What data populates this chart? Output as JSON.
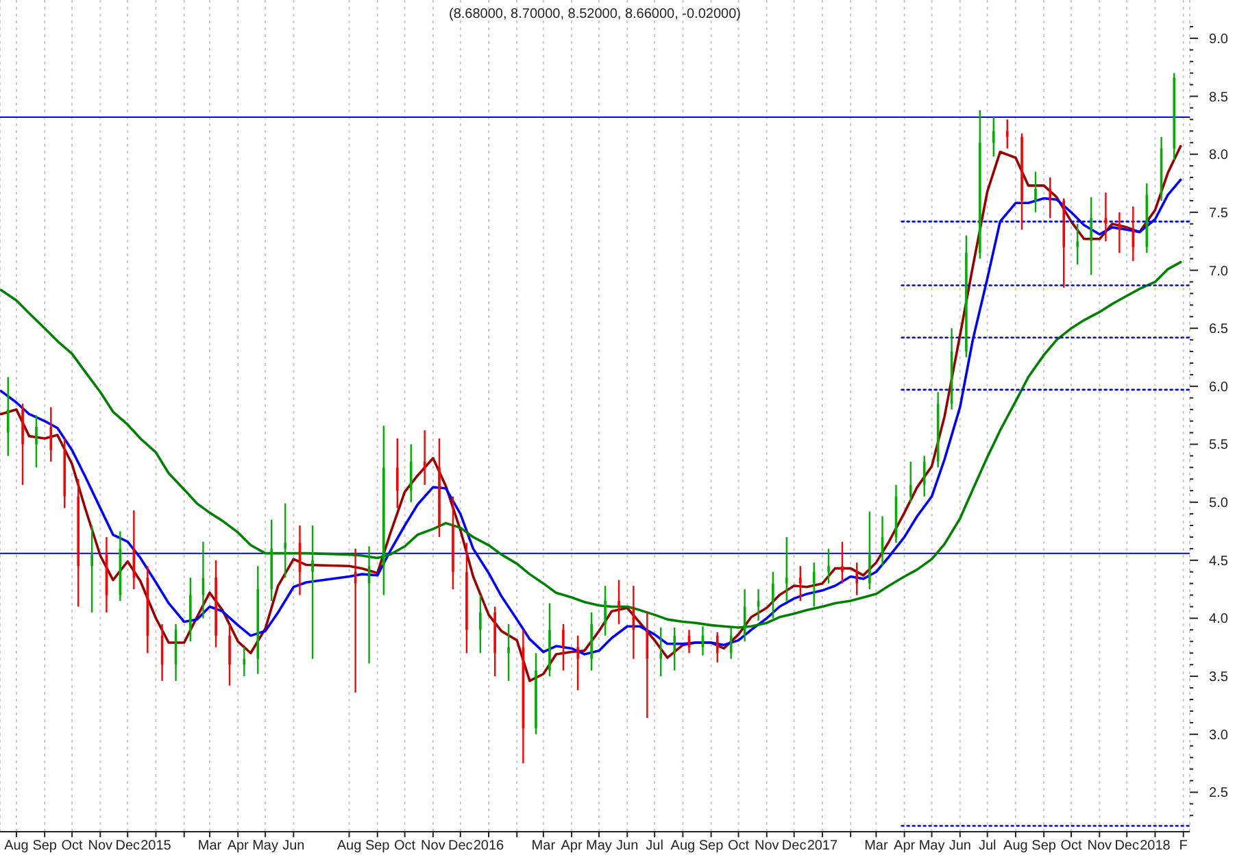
{
  "chart_data": {
    "type": "candlestick",
    "title": "(8.68000, 8.70000, 8.52000, 8.66000, -0.02000)",
    "x": [
      "2014-07-23",
      "2014-08-08",
      "2014-08-23",
      "2014-09-08",
      "2014-09-23",
      "2014-10-08",
      "2014-10-23",
      "2014-11-08",
      "2014-11-23",
      "2014-12-08",
      "2014-12-23",
      "2015-01-08",
      "2015-01-23",
      "2015-02-08",
      "2015-02-22",
      "2015-03-08",
      "2015-03-23",
      "2015-04-08",
      "2015-04-23",
      "2015-05-08",
      "2015-05-23",
      "2015-06-08",
      "2015-06-22",
      "2015-08-08",
      "2015-08-23",
      "2015-09-08",
      "2015-09-23",
      "2015-10-08",
      "2015-10-23",
      "2015-11-08",
      "2015-11-23",
      "2015-12-08",
      "2015-12-23",
      "2016-01-08",
      "2016-01-23",
      "2016-02-08",
      "2016-02-22",
      "2016-03-08",
      "2016-03-23",
      "2016-04-08",
      "2016-04-23",
      "2016-05-08",
      "2016-05-23",
      "2016-06-08",
      "2016-06-23",
      "2016-07-08",
      "2016-07-23",
      "2016-08-08",
      "2016-08-23",
      "2016-09-08",
      "2016-09-23",
      "2016-10-08",
      "2016-10-23",
      "2016-11-08",
      "2016-11-23",
      "2016-12-08",
      "2016-12-23",
      "2017-01-08",
      "2017-01-23",
      "2017-02-08",
      "2017-02-22",
      "2017-03-08",
      "2017-03-23",
      "2017-04-08",
      "2017-04-23",
      "2017-05-08",
      "2017-05-23",
      "2017-06-08",
      "2017-06-23",
      "2017-07-08",
      "2017-07-23",
      "2017-08-08",
      "2017-08-23",
      "2017-09-08",
      "2017-09-23",
      "2017-10-08",
      "2017-10-23",
      "2017-11-08",
      "2017-11-23",
      "2017-12-08",
      "2017-12-23",
      "2018-01-08",
      "2018-01-22"
    ],
    "ohlc": [
      [
        5.6,
        6.08,
        5.4,
        5.8
      ],
      [
        5.8,
        5.85,
        5.15,
        5.5
      ],
      [
        5.5,
        5.75,
        5.3,
        5.65
      ],
      [
        5.65,
        5.82,
        5.35,
        5.45
      ],
      [
        5.45,
        5.55,
        4.95,
        5.05
      ],
      [
        5.05,
        5.2,
        4.1,
        4.45
      ],
      [
        4.45,
        4.8,
        4.05,
        4.55
      ],
      [
        4.55,
        4.7,
        4.05,
        4.2
      ],
      [
        4.2,
        4.75,
        4.15,
        4.6
      ],
      [
        4.6,
        4.93,
        4.25,
        4.35
      ],
      [
        4.35,
        4.45,
        3.7,
        3.85
      ],
      [
        3.85,
        3.95,
        3.46,
        3.6
      ],
      [
        3.6,
        3.95,
        3.46,
        3.9
      ],
      [
        3.9,
        4.35,
        3.8,
        4.2
      ],
      [
        4.2,
        4.66,
        4.0,
        4.35
      ],
      [
        4.35,
        4.5,
        3.75,
        3.85
      ],
      [
        3.85,
        3.95,
        3.42,
        3.6
      ],
      [
        3.6,
        3.75,
        3.5,
        3.65
      ],
      [
        3.65,
        4.45,
        3.52,
        4.25
      ],
      [
        4.25,
        4.85,
        4.15,
        4.6
      ],
      [
        4.6,
        4.99,
        4.35,
        4.65
      ],
      [
        4.65,
        4.8,
        4.2,
        4.4
      ],
      [
        4.4,
        4.8,
        3.65,
        4.5
      ],
      [
        4.4,
        4.6,
        3.36,
        4.3
      ],
      [
        4.3,
        4.62,
        3.61,
        4.45
      ],
      [
        4.45,
        5.66,
        4.2,
        5.3
      ],
      [
        5.3,
        5.55,
        4.95,
        5.1
      ],
      [
        5.1,
        5.5,
        5.0,
        5.35
      ],
      [
        5.35,
        5.62,
        5.15,
        5.3
      ],
      [
        5.3,
        5.55,
        4.7,
        4.8
      ],
      [
        4.8,
        5.05,
        4.25,
        4.4
      ],
      [
        4.4,
        4.65,
        3.7,
        3.9
      ],
      [
        3.9,
        4.2,
        3.7,
        4.05
      ],
      [
        4.05,
        4.1,
        3.5,
        3.7
      ],
      [
        3.7,
        3.95,
        3.46,
        3.75
      ],
      [
        3.75,
        3.9,
        2.75,
        3.05
      ],
      [
        3.05,
        3.7,
        3.0,
        3.55
      ],
      [
        3.55,
        4.13,
        3.5,
        3.9
      ],
      [
        3.9,
        3.95,
        3.55,
        3.75
      ],
      [
        3.75,
        3.85,
        3.38,
        3.65
      ],
      [
        3.65,
        4.05,
        3.55,
        3.95
      ],
      [
        3.95,
        4.28,
        3.85,
        4.15
      ],
      [
        4.15,
        4.33,
        3.95,
        4.1
      ],
      [
        4.1,
        4.28,
        3.65,
        3.9
      ],
      [
        3.9,
        4.05,
        3.14,
        3.65
      ],
      [
        3.65,
        3.92,
        3.5,
        3.7
      ],
      [
        3.7,
        3.92,
        3.55,
        3.85
      ],
      [
        3.85,
        3.9,
        3.7,
        3.75
      ],
      [
        3.75,
        3.93,
        3.68,
        3.85
      ],
      [
        3.85,
        3.88,
        3.62,
        3.7
      ],
      [
        3.7,
        3.92,
        3.65,
        3.85
      ],
      [
        3.85,
        4.25,
        3.8,
        4.1
      ],
      [
        4.1,
        4.25,
        3.98,
        4.15
      ],
      [
        4.15,
        4.4,
        4.0,
        4.3
      ],
      [
        4.3,
        4.7,
        4.15,
        4.35
      ],
      [
        4.35,
        4.45,
        4.15,
        4.3
      ],
      [
        4.3,
        4.48,
        4.1,
        4.4
      ],
      [
        4.4,
        4.6,
        4.3,
        4.45
      ],
      [
        4.45,
        4.66,
        4.3,
        4.4
      ],
      [
        4.4,
        4.48,
        4.2,
        4.3
      ],
      [
        4.3,
        4.92,
        4.25,
        4.55
      ],
      [
        4.55,
        4.88,
        4.45,
        4.7
      ],
      [
        4.7,
        5.15,
        4.65,
        5.05
      ],
      [
        5.05,
        5.35,
        5.0,
        5.15
      ],
      [
        5.15,
        5.4,
        5.05,
        5.35
      ],
      [
        5.35,
        5.95,
        5.3,
        5.85
      ],
      [
        5.85,
        6.5,
        5.8,
        6.3
      ],
      [
        6.3,
        7.3,
        6.25,
        7.15
      ],
      [
        7.15,
        8.38,
        7.1,
        8.1
      ],
      [
        8.1,
        8.32,
        7.98,
        8.2
      ],
      [
        8.2,
        8.3,
        8.05,
        8.15
      ],
      [
        8.15,
        8.18,
        7.35,
        7.6
      ],
      [
        7.6,
        7.85,
        7.5,
        7.7
      ],
      [
        7.7,
        7.8,
        7.45,
        7.6
      ],
      [
        7.6,
        7.62,
        6.85,
        7.2
      ],
      [
        7.2,
        7.4,
        7.05,
        7.25
      ],
      [
        7.25,
        7.63,
        6.96,
        7.45
      ],
      [
        7.45,
        7.67,
        7.25,
        7.4
      ],
      [
        7.4,
        7.5,
        7.15,
        7.35
      ],
      [
        7.35,
        7.55,
        7.08,
        7.2
      ],
      [
        7.2,
        7.75,
        7.15,
        7.65
      ],
      [
        7.65,
        8.15,
        7.6,
        8.05
      ],
      [
        8.05,
        8.7,
        7.95,
        8.66
      ]
    ],
    "colors": [
      "#00b000",
      "#ff0000",
      "#00b000",
      "#ff0000",
      "#ff0000",
      "#ff0000",
      "#00b000",
      "#ff0000",
      "#00b000",
      "#ff0000",
      "#ff0000",
      "#ff0000",
      "#00b000",
      "#00b000",
      "#00b000",
      "#ff0000",
      "#ff0000",
      "#00b000",
      "#00b000",
      "#00b000",
      "#00b000",
      "#ff0000",
      "#00b000",
      "#ff0000",
      "#00b000",
      "#00b000",
      "#ff0000",
      "#00b000",
      "#ff0000",
      "#ff0000",
      "#ff0000",
      "#ff0000",
      "#00b000",
      "#ff0000",
      "#00b000",
      "#ff0000",
      "#00b000",
      "#00b000",
      "#ff0000",
      "#ff0000",
      "#00b000",
      "#00b000",
      "#ff0000",
      "#ff0000",
      "#ff0000",
      "#00b000",
      "#00b000",
      "#ff0000",
      "#00b000",
      "#ff0000",
      "#00b000",
      "#00b000",
      "#00b000",
      "#00b000",
      "#00b000",
      "#ff0000",
      "#00b000",
      "#00b000",
      "#ff0000",
      "#ff0000",
      "#00b000",
      "#00b000",
      "#00b000",
      "#00b000",
      "#00b000",
      "#00b000",
      "#00b000",
      "#00b000",
      "#00b000",
      "#00b000",
      "#ff0000",
      "#ff0000",
      "#00b000",
      "#ff0000",
      "#ff0000",
      "#00b000",
      "#00b000",
      "#ff0000",
      "#ff0000",
      "#ff0000",
      "#00b000",
      "#00b000",
      "#00b000"
    ],
    "series": [
      {
        "type": "line",
        "color": "#990000",
        "x": [
          "2014-07-15",
          "2014-08-01",
          "2014-08-15",
          "2014-09-01",
          "2014-09-15",
          "2014-10-01",
          "2014-10-15",
          "2014-11-01",
          "2014-11-15",
          "2014-12-01",
          "2014-12-15",
          "2015-01-01",
          "2015-01-15",
          "2015-02-01",
          "2015-02-15",
          "2015-03-01",
          "2015-03-15",
          "2015-04-01",
          "2015-04-15",
          "2015-05-01",
          "2015-05-15",
          "2015-06-01",
          "2015-06-15",
          "2015-08-01",
          "2015-08-15",
          "2015-09-01",
          "2015-09-15",
          "2015-10-01",
          "2015-10-15",
          "2015-11-01",
          "2015-11-15",
          "2015-12-01",
          "2015-12-15",
          "2016-01-01",
          "2016-01-15",
          "2016-02-01",
          "2016-02-15",
          "2016-03-01",
          "2016-03-15",
          "2016-04-01",
          "2016-04-15",
          "2016-05-01",
          "2016-05-15",
          "2016-06-01",
          "2016-06-15",
          "2016-07-01",
          "2016-07-15",
          "2016-08-01",
          "2016-08-15",
          "2016-09-01",
          "2016-09-15",
          "2016-10-01",
          "2016-10-15",
          "2016-11-01",
          "2016-11-15",
          "2016-12-01",
          "2016-12-15",
          "2017-01-01",
          "2017-01-15",
          "2017-02-01",
          "2017-02-15",
          "2017-03-01",
          "2017-03-15",
          "2017-04-01",
          "2017-04-15",
          "2017-05-01",
          "2017-05-15",
          "2017-06-01",
          "2017-06-15",
          "2017-07-01",
          "2017-07-15",
          "2017-08-01",
          "2017-08-15",
          "2017-09-01",
          "2017-09-15",
          "2017-10-01",
          "2017-10-15",
          "2017-11-01",
          "2017-11-15",
          "2017-12-01",
          "2017-12-15",
          "2018-01-01",
          "2018-01-15",
          "2018-01-29"
        ],
        "values": [
          5.76,
          5.8,
          5.57,
          5.55,
          5.58,
          5.33,
          4.96,
          4.54,
          4.33,
          4.49,
          4.32,
          4.0,
          3.79,
          3.79,
          4.01,
          4.22,
          4.07,
          3.8,
          3.7,
          3.91,
          4.28,
          4.51,
          4.46,
          4.45,
          4.43,
          4.39,
          4.73,
          5.09,
          5.23,
          5.38,
          5.14,
          4.76,
          4.36,
          4.03,
          3.89,
          3.81,
          3.46,
          3.52,
          3.69,
          3.71,
          3.72,
          3.89,
          4.06,
          4.09,
          3.96,
          3.81,
          3.66,
          3.77,
          3.79,
          3.79,
          3.74,
          3.86,
          4.01,
          4.09,
          4.2,
          4.28,
          4.27,
          4.3,
          4.43,
          4.43,
          4.37,
          4.48,
          4.66,
          4.91,
          5.13,
          5.31,
          5.74,
          6.44,
          7.03,
          7.68,
          8.02,
          7.97,
          7.73,
          7.73,
          7.63,
          7.42,
          7.27,
          7.27,
          7.4,
          7.37,
          7.33,
          7.52,
          7.84,
          8.07
        ]
      },
      {
        "type": "line",
        "color": "#0000ff",
        "x": [
          "2014-07-15",
          "2014-08-01",
          "2014-08-15",
          "2014-09-01",
          "2014-09-15",
          "2014-10-01",
          "2014-10-15",
          "2014-11-01",
          "2014-11-15",
          "2014-12-01",
          "2014-12-15",
          "2015-01-01",
          "2015-01-15",
          "2015-02-01",
          "2015-02-15",
          "2015-03-01",
          "2015-03-15",
          "2015-04-01",
          "2015-04-15",
          "2015-05-01",
          "2015-05-15",
          "2015-06-01",
          "2015-06-15",
          "2015-08-01",
          "2015-08-15",
          "2015-09-01",
          "2015-09-15",
          "2015-10-01",
          "2015-10-15",
          "2015-11-01",
          "2015-11-15",
          "2015-12-01",
          "2015-12-15",
          "2016-01-01",
          "2016-01-15",
          "2016-02-01",
          "2016-02-15",
          "2016-03-01",
          "2016-03-15",
          "2016-04-01",
          "2016-04-15",
          "2016-05-01",
          "2016-05-15",
          "2016-06-01",
          "2016-06-15",
          "2016-07-01",
          "2016-07-15",
          "2016-08-01",
          "2016-08-15",
          "2016-09-01",
          "2016-09-15",
          "2016-10-01",
          "2016-10-15",
          "2016-11-01",
          "2016-11-15",
          "2016-12-01",
          "2016-12-15",
          "2017-01-01",
          "2017-01-15",
          "2017-02-01",
          "2017-02-15",
          "2017-03-01",
          "2017-03-15",
          "2017-04-01",
          "2017-04-15",
          "2017-05-01",
          "2017-05-15",
          "2017-06-01",
          "2017-06-15",
          "2017-07-01",
          "2017-07-15",
          "2017-08-01",
          "2017-08-15",
          "2017-09-01",
          "2017-09-15",
          "2017-10-01",
          "2017-10-15",
          "2017-11-01",
          "2017-11-15",
          "2017-12-01",
          "2017-12-15",
          "2018-01-01",
          "2018-01-15",
          "2018-01-29"
        ],
        "values": [
          5.96,
          5.86,
          5.76,
          5.7,
          5.64,
          5.45,
          5.23,
          4.95,
          4.72,
          4.66,
          4.52,
          4.31,
          4.13,
          3.97,
          3.99,
          4.1,
          4.06,
          3.94,
          3.85,
          3.89,
          4.05,
          4.27,
          4.31,
          4.36,
          4.38,
          4.37,
          4.58,
          4.8,
          4.98,
          5.13,
          5.12,
          4.9,
          4.6,
          4.39,
          4.19,
          3.99,
          3.82,
          3.71,
          3.76,
          3.74,
          3.69,
          3.72,
          3.83,
          3.93,
          3.93,
          3.86,
          3.78,
          3.78,
          3.79,
          3.79,
          3.77,
          3.81,
          3.9,
          4.0,
          4.1,
          4.17,
          4.21,
          4.24,
          4.28,
          4.36,
          4.34,
          4.4,
          4.53,
          4.7,
          4.88,
          5.05,
          5.37,
          5.82,
          6.4,
          6.93,
          7.42,
          7.58,
          7.58,
          7.62,
          7.61,
          7.5,
          7.39,
          7.31,
          7.37,
          7.35,
          7.33,
          7.44,
          7.65,
          7.78
        ]
      },
      {
        "type": "line",
        "color": "#008000",
        "x": [
          "2014-07-15",
          "2014-08-01",
          "2014-08-15",
          "2014-09-01",
          "2014-09-15",
          "2014-10-01",
          "2014-10-15",
          "2014-11-01",
          "2014-11-15",
          "2014-12-01",
          "2014-12-15",
          "2015-01-01",
          "2015-01-15",
          "2015-02-01",
          "2015-02-15",
          "2015-03-01",
          "2015-03-15",
          "2015-04-01",
          "2015-04-15",
          "2015-05-01",
          "2015-05-15",
          "2015-06-01",
          "2015-06-15",
          "2015-08-01",
          "2015-08-15",
          "2015-09-01",
          "2015-09-15",
          "2015-10-01",
          "2015-10-15",
          "2015-11-01",
          "2015-11-15",
          "2015-12-01",
          "2015-12-15",
          "2016-01-01",
          "2016-01-15",
          "2016-02-01",
          "2016-02-15",
          "2016-03-01",
          "2016-03-15",
          "2016-04-01",
          "2016-04-15",
          "2016-05-01",
          "2016-05-15",
          "2016-06-01",
          "2016-06-15",
          "2016-07-01",
          "2016-07-15",
          "2016-08-01",
          "2016-08-15",
          "2016-09-01",
          "2016-09-15",
          "2016-10-01",
          "2016-10-15",
          "2016-11-01",
          "2016-11-15",
          "2016-12-01",
          "2016-12-15",
          "2017-01-01",
          "2017-01-15",
          "2017-02-01",
          "2017-02-15",
          "2017-03-01",
          "2017-03-15",
          "2017-04-01",
          "2017-04-15",
          "2017-05-01",
          "2017-05-15",
          "2017-06-01",
          "2017-06-15",
          "2017-07-01",
          "2017-07-15",
          "2017-08-01",
          "2017-08-15",
          "2017-09-01",
          "2017-09-15",
          "2017-10-01",
          "2017-10-15",
          "2017-11-01",
          "2017-11-15",
          "2017-12-01",
          "2017-12-15",
          "2018-01-01",
          "2018-01-15",
          "2018-01-29"
        ],
        "values": [
          6.83,
          6.74,
          6.63,
          6.5,
          6.39,
          6.28,
          6.13,
          5.95,
          5.78,
          5.67,
          5.55,
          5.43,
          5.25,
          5.11,
          4.99,
          4.91,
          4.84,
          4.74,
          4.63,
          4.56,
          4.56,
          4.56,
          4.56,
          4.55,
          4.54,
          4.52,
          4.55,
          4.62,
          4.72,
          4.77,
          4.82,
          4.78,
          4.7,
          4.63,
          4.55,
          4.47,
          4.38,
          4.3,
          4.22,
          4.18,
          4.14,
          4.11,
          4.1,
          4.1,
          4.07,
          4.03,
          3.99,
          3.97,
          3.96,
          3.94,
          3.93,
          3.92,
          3.93,
          3.96,
          4.01,
          4.04,
          4.07,
          4.1,
          4.13,
          4.15,
          4.18,
          4.21,
          4.28,
          4.36,
          4.42,
          4.51,
          4.64,
          4.86,
          5.11,
          5.39,
          5.62,
          5.87,
          6.08,
          6.27,
          6.4,
          6.5,
          6.57,
          6.64,
          6.71,
          6.78,
          6.84,
          6.9,
          7.01,
          7.07
        ]
      },
      {
        "type": "line",
        "color": "#0000ff",
        "line_style": "dotted",
        "x": [
          "2017-03-29",
          "2018-02-08"
        ],
        "values": [
          7.42,
          7.42
        ]
      },
      {
        "type": "line",
        "color": "#0000ff",
        "line_style": "dotted",
        "x": [
          "2017-03-29",
          "2018-02-08"
        ],
        "values": [
          6.87,
          6.87
        ]
      },
      {
        "type": "line",
        "color": "#0000ff",
        "line_style": "dotted",
        "x": [
          "2017-03-29",
          "2018-02-08"
        ],
        "values": [
          6.42,
          6.42
        ]
      },
      {
        "type": "line",
        "color": "#0000ff",
        "line_style": "dotted",
        "x": [
          "2017-03-29",
          "2018-02-08"
        ],
        "values": [
          5.97,
          5.97
        ]
      },
      {
        "type": "line",
        "color": "#0000ff",
        "line_style": "dotted",
        "x": [
          "2017-03-29",
          "2018-02-08"
        ],
        "values": [
          2.21,
          2.21
        ]
      }
    ],
    "ref_lines": [
      {
        "axis": "y",
        "value": 8.32,
        "color": "#0000ff"
      },
      {
        "axis": "y",
        "value": 4.56,
        "color": "#0000ff"
      }
    ],
    "xlim": [
      "2014-07-14",
      "2018-02-08"
    ],
    "xticks": [
      {
        "value": "2014-08-01",
        "label": "Aug"
      },
      {
        "value": "2014-09-01",
        "label": "Sep"
      },
      {
        "value": "2014-10-01",
        "label": "Oct"
      },
      {
        "value": "2014-11-01",
        "label": "Nov"
      },
      {
        "value": "2014-12-01",
        "label": "Dec"
      },
      {
        "value": "2015-01-01",
        "label": "2015"
      },
      {
        "value": "2015-02-01",
        "label": null
      },
      {
        "value": "2015-03-01",
        "label": "Mar"
      },
      {
        "value": "2015-04-01",
        "label": "Apr"
      },
      {
        "value": "2015-05-01",
        "label": "May"
      },
      {
        "value": "2015-06-01",
        "label": "Jun"
      },
      {
        "value": "2015-08-01",
        "label": "Aug"
      },
      {
        "value": "2015-09-01",
        "label": "Sep"
      },
      {
        "value": "2015-10-01",
        "label": "Oct"
      },
      {
        "value": "2015-11-01",
        "label": "Nov"
      },
      {
        "value": "2015-12-01",
        "label": "Dec"
      },
      {
        "value": "2016-01-01",
        "label": "2016"
      },
      {
        "value": "2016-02-01",
        "label": null
      },
      {
        "value": "2016-03-01",
        "label": "Mar"
      },
      {
        "value": "2016-04-01",
        "label": "Apr"
      },
      {
        "value": "2016-05-01",
        "label": "May"
      },
      {
        "value": "2016-06-01",
        "label": "Jun"
      },
      {
        "value": "2016-07-01",
        "label": "Jul"
      },
      {
        "value": "2016-08-01",
        "label": "Aug"
      },
      {
        "value": "2016-09-01",
        "label": "Sep"
      },
      {
        "value": "2016-10-01",
        "label": "Oct"
      },
      {
        "value": "2016-11-01",
        "label": "Nov"
      },
      {
        "value": "2016-12-01",
        "label": "Dec"
      },
      {
        "value": "2017-01-01",
        "label": "2017"
      },
      {
        "value": "2017-02-01",
        "label": null
      },
      {
        "value": "2017-03-01",
        "label": "Mar"
      },
      {
        "value": "2017-04-01",
        "label": "Apr"
      },
      {
        "value": "2017-05-01",
        "label": "May"
      },
      {
        "value": "2017-06-01",
        "label": "Jun"
      },
      {
        "value": "2017-07-01",
        "label": "Jul"
      },
      {
        "value": "2017-08-01",
        "label": "Aug"
      },
      {
        "value": "2017-09-01",
        "label": "Sep"
      },
      {
        "value": "2017-10-01",
        "label": "Oct"
      },
      {
        "value": "2017-11-01",
        "label": "Nov"
      },
      {
        "value": "2017-12-01",
        "label": "Dec"
      },
      {
        "value": "2018-01-01",
        "label": "2018"
      },
      {
        "value": "2018-02-01",
        "label": "F"
      }
    ],
    "ylim": [
      2.16,
      9.33
    ],
    "yticks": [
      {
        "value": 2.3,
        "label": null
      },
      {
        "value": 2.4,
        "label": null
      },
      {
        "value": 2.5,
        "label": "2.5"
      },
      {
        "value": 2.6,
        "label": null
      },
      {
        "value": 2.7,
        "label": null
      },
      {
        "value": 2.8,
        "label": null
      },
      {
        "value": 2.9,
        "label": null
      },
      {
        "value": 3,
        "label": "3.0"
      },
      {
        "value": 3.1,
        "label": null
      },
      {
        "value": 3.2,
        "label": null
      },
      {
        "value": 3.3,
        "label": null
      },
      {
        "value": 3.4,
        "label": null
      },
      {
        "value": 3.5,
        "label": "3.5"
      },
      {
        "value": 3.6,
        "label": null
      },
      {
        "value": 3.7,
        "label": null
      },
      {
        "value": 3.8,
        "label": null
      },
      {
        "value": 3.9,
        "label": null
      },
      {
        "value": 4,
        "label": "4.0"
      },
      {
        "value": 4.1,
        "label": null
      },
      {
        "value": 4.2,
        "label": null
      },
      {
        "value": 4.3,
        "label": null
      },
      {
        "value": 4.4,
        "label": null
      },
      {
        "value": 4.5,
        "label": "4.5"
      },
      {
        "value": 4.6,
        "label": null
      },
      {
        "value": 4.7,
        "label": null
      },
      {
        "value": 4.8,
        "label": null
      },
      {
        "value": 4.9,
        "label": null
      },
      {
        "value": 5,
        "label": "5.0"
      },
      {
        "value": 5.1,
        "label": null
      },
      {
        "value": 5.2,
        "label": null
      },
      {
        "value": 5.3,
        "label": null
      },
      {
        "value": 5.4,
        "label": null
      },
      {
        "value": 5.5,
        "label": "5.5"
      },
      {
        "value": 5.6,
        "label": null
      },
      {
        "value": 5.7,
        "label": null
      },
      {
        "value": 5.8,
        "label": null
      },
      {
        "value": 5.9,
        "label": null
      },
      {
        "value": 6,
        "label": "6.0"
      },
      {
        "value": 6.1,
        "label": null
      },
      {
        "value": 6.2,
        "label": null
      },
      {
        "value": 6.3,
        "label": null
      },
      {
        "value": 6.4,
        "label": null
      },
      {
        "value": 6.5,
        "label": "6.5"
      },
      {
        "value": 6.6,
        "label": null
      },
      {
        "value": 6.7,
        "label": null
      },
      {
        "value": 6.8,
        "label": null
      },
      {
        "value": 6.9,
        "label": null
      },
      {
        "value": 7,
        "label": "7.0"
      },
      {
        "value": 7.1,
        "label": null
      },
      {
        "value": 7.2,
        "label": null
      },
      {
        "value": 7.3,
        "label": null
      },
      {
        "value": 7.4,
        "label": null
      },
      {
        "value": 7.5,
        "label": "7.5"
      },
      {
        "value": 7.6,
        "label": null
      },
      {
        "value": 7.7,
        "label": null
      },
      {
        "value": 7.8,
        "label": null
      },
      {
        "value": 7.9,
        "label": null
      },
      {
        "value": 8,
        "label": "8.0"
      },
      {
        "value": 8.1,
        "label": null
      },
      {
        "value": 8.2,
        "label": null
      },
      {
        "value": 8.3,
        "label": null
      },
      {
        "value": 8.4,
        "label": null
      },
      {
        "value": 8.5,
        "label": "8.5"
      },
      {
        "value": 8.6,
        "label": null
      },
      {
        "value": 8.7,
        "label": null
      },
      {
        "value": 8.8,
        "label": null
      },
      {
        "value": 8.9,
        "label": null
      },
      {
        "value": 9,
        "label": "9.0"
      },
      {
        "value": 9.1,
        "label": null
      }
    ],
    "grid": "x"
  }
}
